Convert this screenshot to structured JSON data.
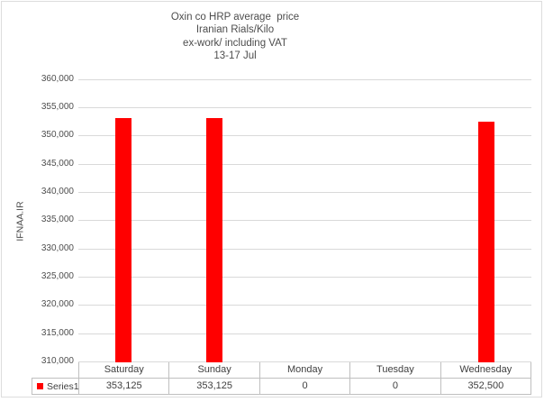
{
  "chart": {
    "title_lines": [
      "Oxin co HRP average  price",
      "Iranian Rials/Kilo",
      "ex-work/ including VAT",
      "13-17 Jul"
    ],
    "y_axis_title": "IFNAA.IR"
  },
  "legend": {
    "label": "Series1"
  },
  "colors": {
    "bar": "#ff0000",
    "gridline": "#d9d9d9",
    "table_border": "#bfbfbf",
    "frame_border": "#dddddd",
    "axis_text": "#4d4d4d",
    "table_text": "#404040"
  },
  "chart_data": {
    "type": "bar",
    "title": "Oxin co HRP average  price / Iranian Rials/Kilo / ex-work/ including VAT / 13-17 Jul",
    "categories": [
      "Saturday",
      "Sunday",
      "Monday",
      "Tuesday",
      "Wednesday"
    ],
    "series": [
      {
        "name": "Series1",
        "values": [
          353125,
          353125,
          0,
          0,
          352500
        ],
        "value_labels": [
          "353,125",
          "353,125",
          "0",
          "0",
          "352,500"
        ],
        "color": "#ff0000"
      }
    ],
    "xlabel": "",
    "ylabel": "IFNAA.IR",
    "ylim": [
      310000,
      360000
    ],
    "ytick_step": 5000,
    "ytick_labels": [
      "360,000",
      "355,000",
      "350,000",
      "345,000",
      "340,000",
      "335,000",
      "330,000",
      "325,000",
      "320,000",
      "315,000",
      "310,000"
    ],
    "grid": true,
    "legend_position": "bottom-data-table"
  }
}
